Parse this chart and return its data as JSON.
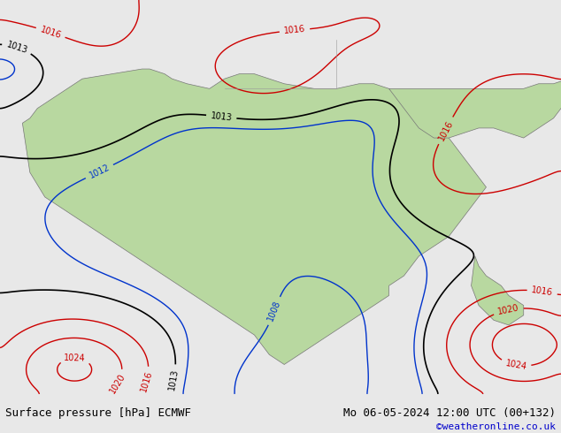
{
  "title_left": "Surface pressure [hPa] ECMWF",
  "title_right": "Mo 06-05-2024 12:00 UTC (00+132)",
  "watermark": "©weatheronline.co.uk",
  "bg_color": "#e8e8e8",
  "land_color": "#b8d8a0",
  "ocean_color": "#ffffff",
  "bottom_bar_color": "#e0e0e0",
  "contour_colors": {
    "low": "#0000cc",
    "high": "#cc0000",
    "normal": "#000000"
  },
  "font_size_labels": 9,
  "font_size_title": 9,
  "font_size_watermark": 8
}
